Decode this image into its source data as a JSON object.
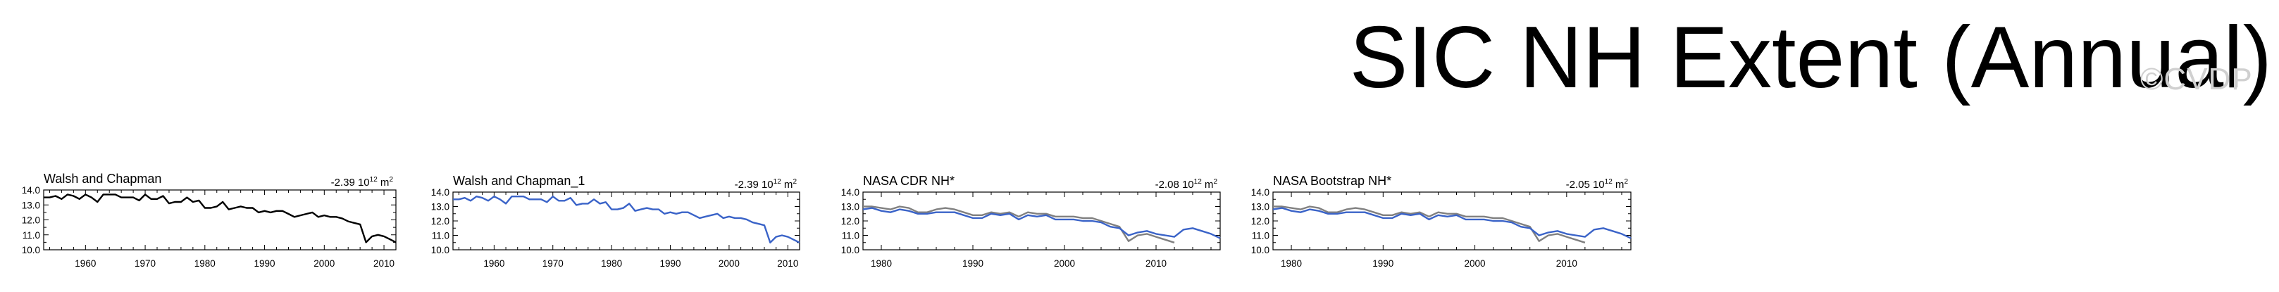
{
  "page": {
    "title": "SIC NH Extent (Annual)",
    "watermark": "©CVDP"
  },
  "chart_data": [
    {
      "type": "line",
      "title": "Walsh and Chapman",
      "trend": "-2.39 10",
      "trend_exp": "12",
      "trend_unit": " m",
      "trend_unit_exp": "2",
      "xlim": [
        1953,
        2012
      ],
      "ylim": [
        10,
        14
      ],
      "yticks": [
        10,
        11,
        12,
        13,
        14
      ],
      "ytick_labels": [
        "10.0",
        "11.0",
        "12.0",
        "13.0",
        "14.0"
      ],
      "xticks": [
        1960,
        1970,
        1980,
        1990,
        2000,
        2010
      ],
      "xtick_labels": [
        "1960",
        "1970",
        "1980",
        "1990",
        "2000",
        "2010"
      ],
      "series": [
        {
          "color": "#000000",
          "x": [
            1953,
            1954,
            1955,
            1956,
            1957,
            1958,
            1959,
            1960,
            1961,
            1962,
            1963,
            1964,
            1965,
            1966,
            1967,
            1968,
            1969,
            1970,
            1971,
            1972,
            1973,
            1974,
            1975,
            1976,
            1977,
            1978,
            1979,
            1980,
            1981,
            1982,
            1983,
            1984,
            1985,
            1986,
            1987,
            1988,
            1989,
            1990,
            1991,
            1992,
            1993,
            1994,
            1995,
            1996,
            1997,
            1998,
            1999,
            2000,
            2001,
            2002,
            2003,
            2004,
            2005,
            2006,
            2007,
            2008,
            2009,
            2010,
            2011,
            2012
          ],
          "y": [
            13.5,
            13.5,
            13.6,
            13.4,
            13.7,
            13.6,
            13.4,
            13.7,
            13.5,
            13.2,
            13.7,
            13.7,
            13.7,
            13.5,
            13.5,
            13.5,
            13.3,
            13.7,
            13.4,
            13.4,
            13.6,
            13.1,
            13.2,
            13.2,
            13.5,
            13.2,
            13.3,
            12.8,
            12.8,
            12.9,
            13.2,
            12.7,
            12.8,
            12.9,
            12.8,
            12.8,
            12.5,
            12.6,
            12.5,
            12.6,
            12.6,
            12.4,
            12.2,
            12.3,
            12.4,
            12.5,
            12.2,
            12.3,
            12.2,
            12.2,
            12.1,
            11.9,
            11.8,
            11.7,
            10.5,
            10.9,
            11.0,
            10.9,
            10.7,
            10.5
          ]
        }
      ]
    },
    {
      "type": "line",
      "title": "Walsh and Chapman_1",
      "trend": "-2.39 10",
      "trend_exp": "12",
      "trend_unit": " m",
      "trend_unit_exp": "2",
      "xlim": [
        1953,
        2012
      ],
      "ylim": [
        10,
        14
      ],
      "yticks": [
        10,
        11,
        12,
        13,
        14
      ],
      "ytick_labels": [
        "10.0",
        "11.0",
        "12.0",
        "13.0",
        "14.0"
      ],
      "xticks": [
        1960,
        1970,
        1980,
        1990,
        2000,
        2010
      ],
      "xtick_labels": [
        "1960",
        "1970",
        "1980",
        "1990",
        "2000",
        "2010"
      ],
      "series": [
        {
          "color": "#3a63c8",
          "x": [
            1953,
            1954,
            1955,
            1956,
            1957,
            1958,
            1959,
            1960,
            1961,
            1962,
            1963,
            1964,
            1965,
            1966,
            1967,
            1968,
            1969,
            1970,
            1971,
            1972,
            1973,
            1974,
            1975,
            1976,
            1977,
            1978,
            1979,
            1980,
            1981,
            1982,
            1983,
            1984,
            1985,
            1986,
            1987,
            1988,
            1989,
            1990,
            1991,
            1992,
            1993,
            1994,
            1995,
            1996,
            1997,
            1998,
            1999,
            2000,
            2001,
            2002,
            2003,
            2004,
            2005,
            2006,
            2007,
            2008,
            2009,
            2010,
            2011,
            2012
          ],
          "y": [
            13.5,
            13.5,
            13.6,
            13.4,
            13.7,
            13.6,
            13.4,
            13.7,
            13.5,
            13.2,
            13.7,
            13.7,
            13.7,
            13.5,
            13.5,
            13.5,
            13.3,
            13.7,
            13.4,
            13.4,
            13.6,
            13.1,
            13.2,
            13.2,
            13.5,
            13.2,
            13.3,
            12.8,
            12.8,
            12.9,
            13.2,
            12.7,
            12.8,
            12.9,
            12.8,
            12.8,
            12.5,
            12.6,
            12.5,
            12.6,
            12.6,
            12.4,
            12.2,
            12.3,
            12.4,
            12.5,
            12.2,
            12.3,
            12.2,
            12.2,
            12.1,
            11.9,
            11.8,
            11.7,
            10.5,
            10.9,
            11.0,
            10.9,
            10.7,
            10.5
          ]
        }
      ]
    },
    {
      "type": "line",
      "title": "NASA CDR NH*",
      "trend": "-2.08 10",
      "trend_exp": "12",
      "trend_unit": " m",
      "trend_unit_exp": "2",
      "xlim": [
        1978,
        2017
      ],
      "ylim": [
        10,
        14
      ],
      "yticks": [
        10,
        11,
        12,
        13,
        14
      ],
      "ytick_labels": [
        "10.0",
        "11.0",
        "12.0",
        "13.0",
        "14.0"
      ],
      "xticks": [
        1980,
        1990,
        2000,
        2010
      ],
      "xtick_labels": [
        "1980",
        "1990",
        "2000",
        "2010"
      ],
      "series": [
        {
          "color": "#808080",
          "x": [
            1978,
            1979,
            1980,
            1981,
            1982,
            1983,
            1984,
            1985,
            1986,
            1987,
            1988,
            1989,
            1990,
            1991,
            1992,
            1993,
            1994,
            1995,
            1996,
            1997,
            1998,
            1999,
            2000,
            2001,
            2002,
            2003,
            2004,
            2005,
            2006,
            2007,
            2008,
            2009,
            2010,
            2011,
            2012
          ],
          "y": [
            13.0,
            13.0,
            12.9,
            12.8,
            13.0,
            12.9,
            12.6,
            12.6,
            12.8,
            12.9,
            12.8,
            12.6,
            12.4,
            12.4,
            12.6,
            12.5,
            12.6,
            12.3,
            12.6,
            12.5,
            12.5,
            12.3,
            12.3,
            12.3,
            12.2,
            12.2,
            12.0,
            11.8,
            11.6,
            10.6,
            11.0,
            11.1,
            10.9,
            10.7,
            10.5
          ]
        },
        {
          "color": "#3a63c8",
          "x": [
            1978,
            1979,
            1980,
            1981,
            1982,
            1983,
            1984,
            1985,
            1986,
            1987,
            1988,
            1989,
            1990,
            1991,
            1992,
            1993,
            1994,
            1995,
            1996,
            1997,
            1998,
            1999,
            2000,
            2001,
            2002,
            2003,
            2004,
            2005,
            2006,
            2007,
            2008,
            2009,
            2010,
            2011,
            2012,
            2013,
            2014,
            2015,
            2016,
            2017
          ],
          "y": [
            12.8,
            12.9,
            12.7,
            12.6,
            12.8,
            12.7,
            12.5,
            12.5,
            12.6,
            12.6,
            12.6,
            12.4,
            12.2,
            12.2,
            12.5,
            12.4,
            12.5,
            12.1,
            12.4,
            12.3,
            12.4,
            12.1,
            12.1,
            12.1,
            12.0,
            12.0,
            11.9,
            11.6,
            11.5,
            11.0,
            11.2,
            11.3,
            11.1,
            11.0,
            10.9,
            11.4,
            11.5,
            11.3,
            11.1,
            10.8
          ]
        }
      ]
    },
    {
      "type": "line",
      "title": "NASA Bootstrap NH*",
      "trend": "-2.05 10",
      "trend_exp": "12",
      "trend_unit": " m",
      "trend_unit_exp": "2",
      "xlim": [
        1978,
        2017
      ],
      "ylim": [
        10,
        14
      ],
      "yticks": [
        10,
        11,
        12,
        13,
        14
      ],
      "ytick_labels": [
        "10.0",
        "11.0",
        "12.0",
        "13.0",
        "14.0"
      ],
      "xticks": [
        1980,
        1990,
        2000,
        2010
      ],
      "xtick_labels": [
        "1980",
        "1990",
        "2000",
        "2010"
      ],
      "series": [
        {
          "color": "#808080",
          "x": [
            1978,
            1979,
            1980,
            1981,
            1982,
            1983,
            1984,
            1985,
            1986,
            1987,
            1988,
            1989,
            1990,
            1991,
            1992,
            1993,
            1994,
            1995,
            1996,
            1997,
            1998,
            1999,
            2000,
            2001,
            2002,
            2003,
            2004,
            2005,
            2006,
            2007,
            2008,
            2009,
            2010,
            2011,
            2012
          ],
          "y": [
            13.0,
            13.0,
            12.9,
            12.8,
            13.0,
            12.9,
            12.6,
            12.6,
            12.8,
            12.9,
            12.8,
            12.6,
            12.4,
            12.4,
            12.6,
            12.5,
            12.6,
            12.3,
            12.6,
            12.5,
            12.5,
            12.3,
            12.3,
            12.3,
            12.2,
            12.2,
            12.0,
            11.8,
            11.6,
            10.6,
            11.0,
            11.1,
            10.9,
            10.7,
            10.5
          ]
        },
        {
          "color": "#3a63c8",
          "x": [
            1978,
            1979,
            1980,
            1981,
            1982,
            1983,
            1984,
            1985,
            1986,
            1987,
            1988,
            1989,
            1990,
            1991,
            1992,
            1993,
            1994,
            1995,
            1996,
            1997,
            1998,
            1999,
            2000,
            2001,
            2002,
            2003,
            2004,
            2005,
            2006,
            2007,
            2008,
            2009,
            2010,
            2011,
            2012,
            2013,
            2014,
            2015,
            2016,
            2017
          ],
          "y": [
            12.8,
            12.9,
            12.7,
            12.6,
            12.8,
            12.7,
            12.5,
            12.5,
            12.6,
            12.6,
            12.6,
            12.4,
            12.2,
            12.2,
            12.5,
            12.4,
            12.5,
            12.1,
            12.4,
            12.3,
            12.4,
            12.1,
            12.1,
            12.1,
            12.0,
            12.0,
            11.9,
            11.6,
            11.5,
            11.0,
            11.2,
            11.3,
            11.1,
            11.0,
            10.9,
            11.4,
            11.5,
            11.3,
            11.1,
            10.8
          ]
        }
      ]
    }
  ]
}
